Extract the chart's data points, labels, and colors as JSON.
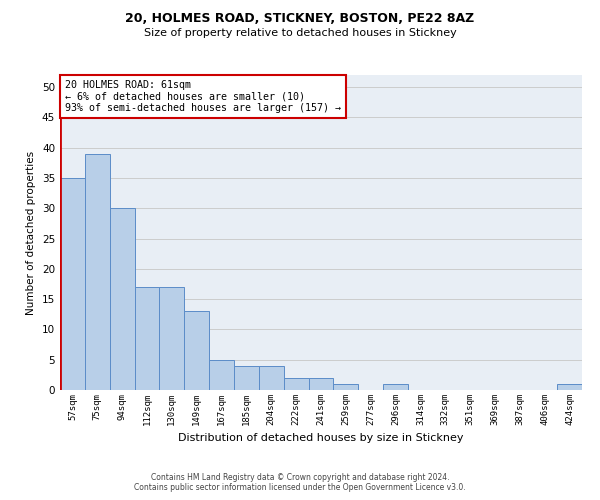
{
  "title1": "20, HOLMES ROAD, STICKNEY, BOSTON, PE22 8AZ",
  "title2": "Size of property relative to detached houses in Stickney",
  "xlabel": "Distribution of detached houses by size in Stickney",
  "ylabel": "Number of detached properties",
  "categories": [
    "57sqm",
    "75sqm",
    "94sqm",
    "112sqm",
    "130sqm",
    "149sqm",
    "167sqm",
    "185sqm",
    "204sqm",
    "222sqm",
    "241sqm",
    "259sqm",
    "277sqm",
    "296sqm",
    "314sqm",
    "332sqm",
    "351sqm",
    "369sqm",
    "387sqm",
    "406sqm",
    "424sqm"
  ],
  "values": [
    35,
    39,
    30,
    17,
    17,
    13,
    5,
    4,
    4,
    2,
    2,
    1,
    0,
    1,
    0,
    0,
    0,
    0,
    0,
    0,
    1
  ],
  "bar_color": "#b8cfe8",
  "bar_edge_color": "#5b8cc8",
  "highlight_line_color": "#cc0000",
  "annotation_text": "20 HOLMES ROAD: 61sqm\n← 6% of detached houses are smaller (10)\n93% of semi-detached houses are larger (157) →",
  "annotation_box_color": "#ffffff",
  "annotation_box_edge": "#cc0000",
  "ylim": [
    0,
    52
  ],
  "yticks": [
    0,
    5,
    10,
    15,
    20,
    25,
    30,
    35,
    40,
    45,
    50
  ],
  "grid_color": "#cccccc",
  "background_color": "#e8eef5",
  "footer_text": "Contains HM Land Registry data © Crown copyright and database right 2024.\nContains public sector information licensed under the Open Government Licence v3.0."
}
